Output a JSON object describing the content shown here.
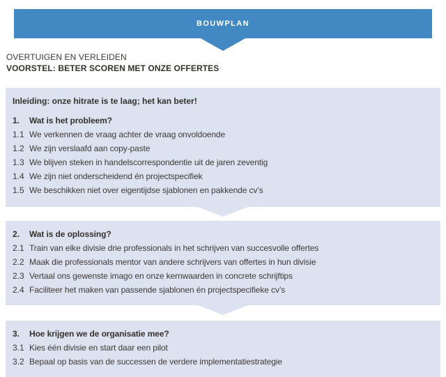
{
  "banner": {
    "label": "BOUWPLAN"
  },
  "header": {
    "kicker": "OVERTUIGEN EN VERLEIDEN",
    "title": "VOORSTEL: BETER SCOREN MET ONZE OFFERTES"
  },
  "colors": {
    "banner_blue": "#4289c4",
    "box_background": "#dce2ef",
    "text": "#3a3a36"
  },
  "icons": {
    "banner_arrow": "chevron-down",
    "flow_arrow": "chevron-down"
  },
  "sections": [
    {
      "intro": "Inleiding: onze hitrate is te laag; het kan beter!",
      "number": "1.",
      "heading": "Wat is het probleem?",
      "items": [
        {
          "num": "1.1",
          "text": "We verkennen de vraag achter de vraag onvoldoende"
        },
        {
          "num": "1.2",
          "text": "We zijn verslaafd aan copy-paste"
        },
        {
          "num": "1.3",
          "text": "We blijven steken in handelscorrespondentie uit de jaren zeventig"
        },
        {
          "num": "1.4",
          "text": "We zijn niet onderscheidend én projectspecifiek"
        },
        {
          "num": "1.5",
          "text": "We beschikken niet over eigentijdse sjablonen en pakkende cv’s"
        }
      ]
    },
    {
      "number": "2.",
      "heading": "Wat is de oplossing?",
      "items": [
        {
          "num": "2.1",
          "text": "Train van elke divisie drie professionals in het schrijven van succesvolle offertes"
        },
        {
          "num": "2.2",
          "text": "Maak die professionals mentor van andere schrijvers van offertes in hun divisie"
        },
        {
          "num": "2.3",
          "text": "Vertaal ons gewenste imago en onze kernwaarden in concrete schrijftips"
        },
        {
          "num": "2.4",
          "text": "Faciliteer het maken van passende sjablonen én projectspecifieke cv’s"
        }
      ]
    },
    {
      "number": "3.",
      "heading": "Hoe krijgen we de organisatie mee?",
      "items": [
        {
          "num": "3.1",
          "text": "Kies één divisie en start daar een pilot"
        },
        {
          "num": "3.2",
          "text": "Bepaal op basis van de successen de verdere implementatiestrategie"
        }
      ]
    }
  ]
}
